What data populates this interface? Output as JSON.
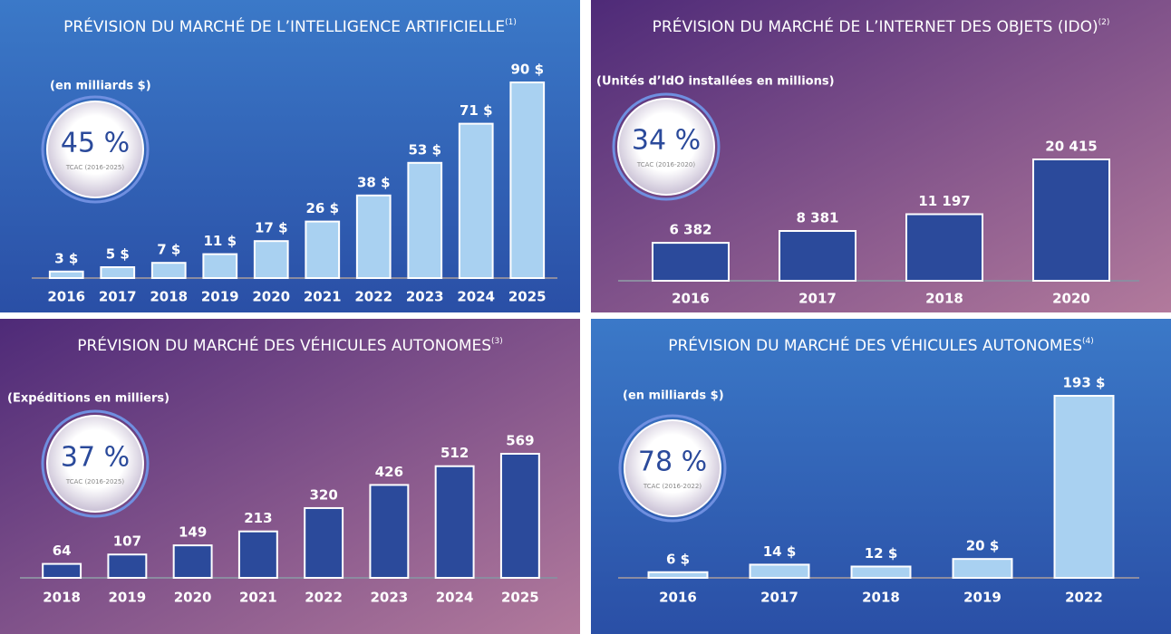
{
  "chart_data": [
    {
      "type": "bar",
      "title": "PRÉVISION DU MARCHÉ DE L’INTELLIGENCE ARTIFICIELLE",
      "title_note": "(1)",
      "subtitle": "(en milliards $)",
      "badge": "45 %",
      "badge_caption": "TCAC (2016-2025)",
      "categories": [
        "2016",
        "2017",
        "2018",
        "2019",
        "2020",
        "2021",
        "2022",
        "2023",
        "2024",
        "2025"
      ],
      "values": [
        3,
        5,
        7,
        11,
        17,
        26,
        38,
        53,
        71,
        90
      ],
      "value_labels": [
        "3 $",
        "5 $",
        "7 $",
        "11 $",
        "17 $",
        "26 $",
        "38 $",
        "53 $",
        "71 $",
        "90 $"
      ],
      "color": "#a9d1f1"
    },
    {
      "type": "bar",
      "title": "PRÉVISION DU MARCHÉ DE L’INTERNET DES OBJETS (IDO)",
      "title_note": "(2)",
      "subtitle": "(Unités d’IdO installées en millions)",
      "badge": "34 %",
      "badge_caption": "TCAC (2016-2020)",
      "categories": [
        "2016",
        "2017",
        "2018",
        "2020"
      ],
      "values": [
        6382,
        8381,
        11197,
        20415
      ],
      "value_labels": [
        "6 382",
        "8 381",
        "11 197",
        "20 415"
      ],
      "color": "#2b4a9b"
    },
    {
      "type": "bar",
      "title": "PRÉVISION DU MARCHÉ DES VÉHICULES AUTONOMES",
      "title_note": "(3)",
      "subtitle": "(Expéditions en milliers)",
      "badge": "37 %",
      "badge_caption": "TCAC (2016-2025)",
      "categories": [
        "2018",
        "2019",
        "2020",
        "2021",
        "2022",
        "2023",
        "2024",
        "2025"
      ],
      "values": [
        64,
        107,
        149,
        213,
        320,
        426,
        512,
        569
      ],
      "color": "#2b4a9b"
    },
    {
      "type": "bar",
      "title": "PRÉVISION DU MARCHÉ DES VÉHICULES AUTONOMES",
      "title_note": "(4)",
      "subtitle": "(en milliards $)",
      "badge": "78 %",
      "badge_caption": "TCAC (2016-2022)",
      "categories": [
        "2016",
        "2017",
        "2018",
        "2019",
        "2022"
      ],
      "values": [
        6,
        14,
        12,
        20,
        193
      ],
      "value_labels": [
        "6 $",
        "14 $",
        "12 $",
        "20 $",
        "193 $"
      ],
      "color": "#a9d1f1"
    }
  ]
}
